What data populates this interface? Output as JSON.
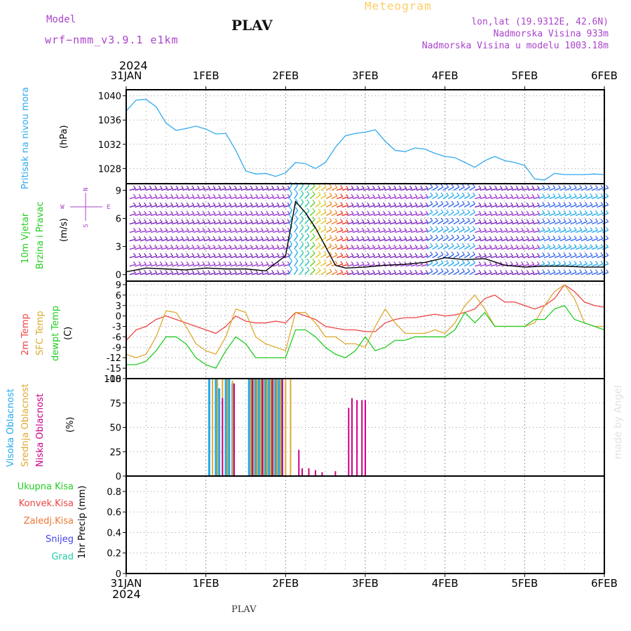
{
  "header": {
    "model_label": "Model",
    "model_name": "wrf−nmm_v3.9.1  e1km",
    "station_title": "PLAV",
    "product_title": "Meteogram",
    "lonlat": "lon,lat (19.9312E, 42.6N)",
    "elevation": "Nadmorska Visina 933m",
    "model_elevation": "Nadmorska Visina u modelu 1003.18m",
    "year_top": "2024",
    "year_bottom": "2024",
    "footer_station": "PLAV",
    "watermark": "made by Angel"
  },
  "colors": {
    "pressure": "#33aaee",
    "temp2m": "#ee4444",
    "sfc": "#ddaa33",
    "dewpt": "#22cc22",
    "cloud_high": "#22aaee",
    "cloud_mid": "#ddaa33",
    "cloud_low": "#cc0088",
    "title_purple": "#aa44cc",
    "meteogram_gold": "#ffcc66"
  },
  "chart_data": [
    {
      "type": "line",
      "panel": "pressure",
      "ylabel_a": "Pritisak na nivou mora",
      "ylabel_b": "(hPa)",
      "x_ticks": [
        "31JAN",
        "1FEB",
        "2FEB",
        "3FEB",
        "4FEB",
        "5FEB",
        "6FEB"
      ],
      "y_ticks": [
        1028,
        1032,
        1036,
        1040
      ],
      "ylim": [
        1025.5,
        1041
      ],
      "x_hours": [
        0,
        3,
        6,
        9,
        12,
        15,
        18,
        21,
        24,
        27,
        30,
        33,
        36,
        39,
        42,
        45,
        48,
        51,
        54,
        57,
        60,
        63,
        66,
        69,
        72,
        75,
        78,
        81,
        84,
        87,
        90,
        93,
        96,
        99,
        102,
        105,
        108,
        111,
        114,
        117,
        120,
        123,
        126,
        129,
        132,
        135,
        138,
        141,
        144
      ],
      "values": [
        1037.5,
        1039.3,
        1039.4,
        1038.2,
        1035.5,
        1034.3,
        1034.6,
        1035.0,
        1034.5,
        1033.7,
        1033.8,
        1031.0,
        1027.6,
        1027.1,
        1027.2,
        1026.7,
        1027.3,
        1029.0,
        1028.8,
        1028.0,
        1029.0,
        1031.5,
        1033.4,
        1033.8,
        1034.0,
        1034.4,
        1032.5,
        1031.0,
        1030.8,
        1031.4,
        1031.2,
        1030.5,
        1030.0,
        1029.8,
        1029.0,
        1028.2,
        1029.3,
        1030.0,
        1029.3,
        1029.0,
        1028.5,
        1026.3,
        1026.1,
        1027.2,
        1027.0,
        1027.0,
        1027.0,
        1027.1,
        1027.0
      ],
      "series": [
        {
          "name": "Pritisak na nivou mora",
          "color": "#33aaee"
        }
      ]
    },
    {
      "type": "line",
      "panel": "wind",
      "ylabel_a": "10m Vjetar",
      "ylabel_b": "Brzina i Pravac",
      "ylabel_c": "(m/s)",
      "compass": {
        "n": "N",
        "s": "S",
        "w": "W",
        "e": "E"
      },
      "y_ticks": [
        0,
        3,
        6,
        9
      ],
      "ylim": [
        -0.7,
        9.7
      ],
      "x_hours": [
        0,
        6,
        12,
        18,
        24,
        30,
        36,
        42,
        48,
        51,
        54,
        57,
        60,
        63,
        66,
        72,
        78,
        84,
        90,
        96,
        102,
        108,
        114,
        120,
        126,
        132,
        138,
        144
      ],
      "values": [
        0.3,
        0.7,
        0.6,
        0.5,
        0.7,
        0.6,
        0.6,
        0.4,
        2.0,
        7.8,
        6.6,
        5.0,
        3.0,
        1.0,
        0.7,
        0.8,
        1.0,
        1.1,
        1.3,
        1.8,
        1.6,
        1.7,
        1.0,
        0.8,
        0.9,
        0.9,
        0.8,
        0.8
      ],
      "series": [
        {
          "name": "10m Vjetar",
          "color": "#000000"
        }
      ]
    },
    {
      "type": "line",
      "panel": "temperature",
      "ylabel_a": "2m Temp",
      "ylabel_b": "SFC Temp",
      "ylabel_c": "dewpt Temp",
      "ylabel_d": "(C)",
      "y_ticks": [
        9,
        6,
        3,
        0,
        -3,
        -6,
        -9,
        -12,
        -15,
        -18
      ],
      "ylim": [
        -18,
        10
      ],
      "x_hours": [
        0,
        3,
        6,
        9,
        12,
        15,
        18,
        21,
        24,
        27,
        30,
        33,
        36,
        39,
        42,
        45,
        48,
        51,
        54,
        57,
        60,
        63,
        66,
        69,
        72,
        75,
        78,
        81,
        84,
        87,
        90,
        93,
        96,
        99,
        102,
        105,
        108,
        111,
        114,
        117,
        120,
        123,
        126,
        129,
        132,
        135,
        138,
        141,
        144
      ],
      "series": [
        {
          "name": "2m Temp",
          "color": "#ee4444",
          "values": [
            -7,
            -4,
            -3,
            -1,
            0,
            -1,
            -2,
            -3,
            -4,
            -5,
            -3,
            0,
            -1.5,
            -2,
            -2,
            -1.5,
            -2,
            1,
            0,
            -1,
            -3,
            -3.5,
            -4,
            -4,
            -4.5,
            -4.5,
            -2,
            -1,
            -0.5,
            -0.5,
            0,
            0.5,
            0,
            0.3,
            1,
            2,
            5,
            6,
            4,
            4,
            3,
            2,
            3,
            5,
            9,
            7,
            4,
            3,
            2.5
          ]
        },
        {
          "name": "SFC Temp",
          "color": "#ddaa33",
          "values": [
            -11,
            -12,
            -11,
            -6,
            1.5,
            1,
            -3,
            -8,
            -10,
            -11,
            -6,
            2,
            1,
            -6,
            -8,
            -9,
            -10,
            1,
            1,
            -2,
            -6,
            -6,
            -8,
            -8,
            -9,
            -3,
            2,
            -2,
            -5,
            -5,
            -5,
            -4,
            -5,
            -2,
            3,
            6,
            2,
            -3,
            -3,
            -3,
            -3,
            -2,
            3,
            7,
            9,
            5,
            -2,
            -3,
            -3
          ]
        },
        {
          "name": "dewpt Temp",
          "color": "#22cc22",
          "values": [
            -14,
            -14,
            -13,
            -10,
            -6,
            -6,
            -8,
            -12,
            -14,
            -15,
            -10,
            -6,
            -8,
            -12,
            -12,
            -12,
            -12,
            -4,
            -4,
            -6,
            -9,
            -11,
            -12,
            -10,
            -6,
            -10,
            -9,
            -7,
            -7,
            -6,
            -6,
            -6,
            -6,
            -4,
            1,
            -2,
            1,
            -3,
            -3,
            -3,
            -3,
            -1,
            -1,
            2,
            3,
            -1,
            -2,
            -3,
            -4
          ]
        }
      ]
    },
    {
      "type": "bar",
      "panel": "clouds",
      "ylabel_a": "Visoka Oblacnost",
      "ylabel_b": "Srednja Oblacnost",
      "ylabel_c": "Niska Oblacnost",
      "ylabel_d": "(%)",
      "y_ticks": [
        0,
        25,
        50,
        75,
        100
      ],
      "ylim": [
        0,
        100
      ],
      "series": [
        {
          "name": "Visoka Oblacnost",
          "color": "#22aaee",
          "bars": [
            [
              25,
              100
            ],
            [
              27,
              100
            ],
            [
              28,
              90
            ],
            [
              30,
              100
            ],
            [
              31,
              100
            ],
            [
              32,
              95
            ],
            [
              37,
              100
            ],
            [
              38,
              100
            ],
            [
              39,
              100
            ],
            [
              40,
              100
            ],
            [
              41,
              100
            ],
            [
              42,
              100
            ],
            [
              43,
              100
            ],
            [
              44,
              100
            ],
            [
              45,
              100
            ],
            [
              46,
              100
            ],
            [
              47,
              100
            ]
          ]
        },
        {
          "name": "Srednja Oblacnost",
          "color": "#ddaa33",
          "bars": [
            [
              26,
              100
            ],
            [
              27.5,
              100
            ],
            [
              29,
              100
            ],
            [
              30.5,
              100
            ],
            [
              32,
              98
            ],
            [
              37.5,
              100
            ],
            [
              38.5,
              100
            ],
            [
              39.5,
              100
            ],
            [
              40.5,
              100
            ],
            [
              41.5,
              100
            ],
            [
              42.5,
              100
            ],
            [
              43.5,
              100
            ],
            [
              44.5,
              100
            ],
            [
              45.5,
              100
            ],
            [
              46.5,
              100
            ],
            [
              48,
              100
            ],
            [
              49.5,
              100
            ]
          ]
        },
        {
          "name": "Niska Oblacnost",
          "color": "#cc0088",
          "bars": [
            [
              29,
              80
            ],
            [
              32.5,
              95
            ],
            [
              38,
              100
            ],
            [
              41,
              100
            ],
            [
              44,
              100
            ],
            [
              47,
              100
            ],
            [
              52,
              27
            ],
            [
              53,
              8
            ],
            [
              55,
              8
            ],
            [
              57,
              6
            ],
            [
              59,
              4
            ],
            [
              63,
              5
            ],
            [
              67,
              70
            ],
            [
              68,
              80
            ],
            [
              69.5,
              78
            ],
            [
              71,
              78
            ],
            [
              72,
              78
            ]
          ]
        }
      ]
    },
    {
      "type": "bar",
      "panel": "precip",
      "ylabel_a": "1hr Precip",
      "ylabel_b": "(mm)",
      "legend": [
        "Ukupna Kisa",
        "Konvek.Kisa",
        "Zaledj.Kisa",
        "Snijeg",
        "Grad"
      ],
      "legend_colors": [
        "#22cc22",
        "#ee4444",
        "#ee7733",
        "#4444ee",
        "#22ccaa"
      ],
      "y_ticks": [
        0,
        0.2,
        0.4,
        0.6,
        0.8
      ],
      "ylim": [
        0,
        0.95
      ],
      "bars": []
    }
  ]
}
